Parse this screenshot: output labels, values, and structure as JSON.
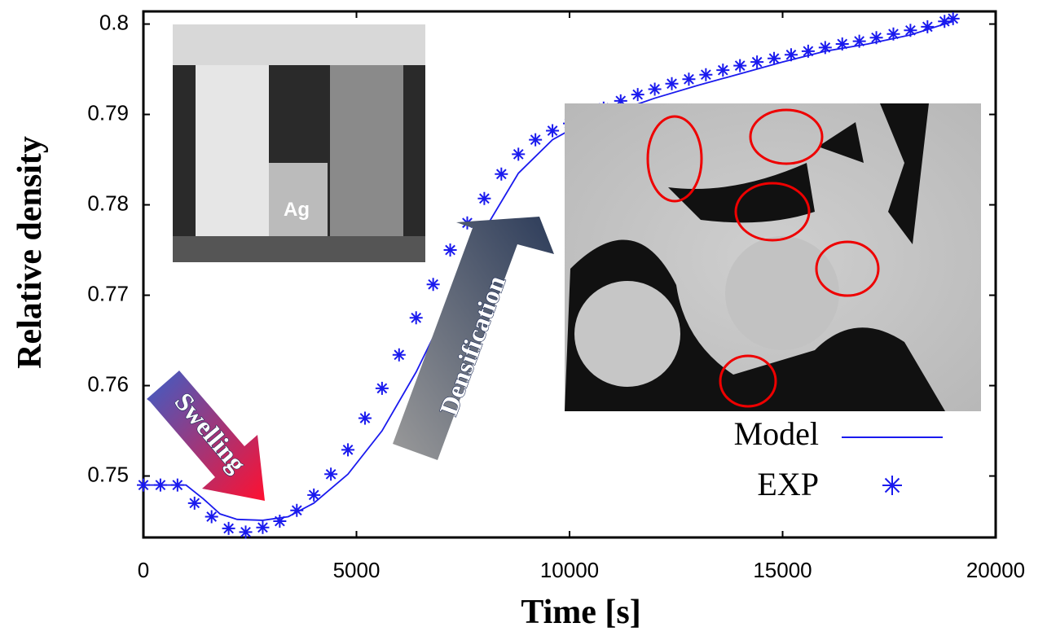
{
  "chart_data": {
    "type": "line",
    "xlabel": "Time [s]",
    "ylabel": "Relative density",
    "xlim": [
      0,
      20000
    ],
    "xticks": [
      0,
      5000,
      10000,
      15000,
      20000
    ],
    "ylim": [
      0.7432,
      0.8014
    ],
    "yticks": [
      0.75,
      0.76,
      0.77,
      0.78,
      0.79,
      0.8
    ],
    "annotations": [
      "Swelling",
      "Densification",
      "Ag"
    ],
    "series": [
      {
        "name": "Model",
        "color": "#1a1aee",
        "style": "line",
        "x": [
          0,
          1000,
          1400,
          1800,
          2200,
          2800,
          3400,
          4000,
          4800,
          5600,
          6400,
          7200,
          8000,
          8800,
          9600,
          10400,
          11200,
          12000,
          13000,
          14000,
          15000,
          16000,
          17000,
          18000,
          19000
        ],
        "values": [
          0.749,
          0.749,
          0.7475,
          0.7458,
          0.7452,
          0.7451,
          0.7455,
          0.747,
          0.7502,
          0.755,
          0.7615,
          0.7692,
          0.7772,
          0.7835,
          0.7872,
          0.7893,
          0.7905,
          0.7918,
          0.7932,
          0.7945,
          0.7958,
          0.797,
          0.7978,
          0.7988,
          0.8003
        ]
      },
      {
        "name": "EXP",
        "color": "#1a1aee",
        "style": "marker",
        "x": [
          0,
          400,
          800,
          1200,
          1600,
          2000,
          2400,
          2800,
          3200,
          3600,
          4000,
          4400,
          4800,
          5200,
          5600,
          6000,
          6400,
          6800,
          7200,
          7600,
          8000,
          8400,
          8800,
          9200,
          9600,
          10000,
          10400,
          10800,
          11200,
          11600,
          12000,
          12400,
          12800,
          13200,
          13600,
          14000,
          14400,
          14800,
          15200,
          15600,
          16000,
          16400,
          16800,
          17200,
          17600,
          18000,
          18400,
          18800,
          19000
        ],
        "values": [
          0.749,
          0.749,
          0.749,
          0.747,
          0.7455,
          0.7442,
          0.7438,
          0.7443,
          0.745,
          0.7462,
          0.7479,
          0.7502,
          0.7529,
          0.7564,
          0.7597,
          0.7634,
          0.7675,
          0.7712,
          0.775,
          0.778,
          0.7807,
          0.7834,
          0.7856,
          0.7872,
          0.7882,
          0.789,
          0.7899,
          0.7907,
          0.7915,
          0.7922,
          0.7928,
          0.7934,
          0.7939,
          0.7944,
          0.7949,
          0.7954,
          0.7958,
          0.7962,
          0.7966,
          0.797,
          0.7974,
          0.7978,
          0.7981,
          0.7985,
          0.7989,
          0.7993,
          0.7997,
          0.8003,
          0.8006
        ]
      }
    ]
  }
}
